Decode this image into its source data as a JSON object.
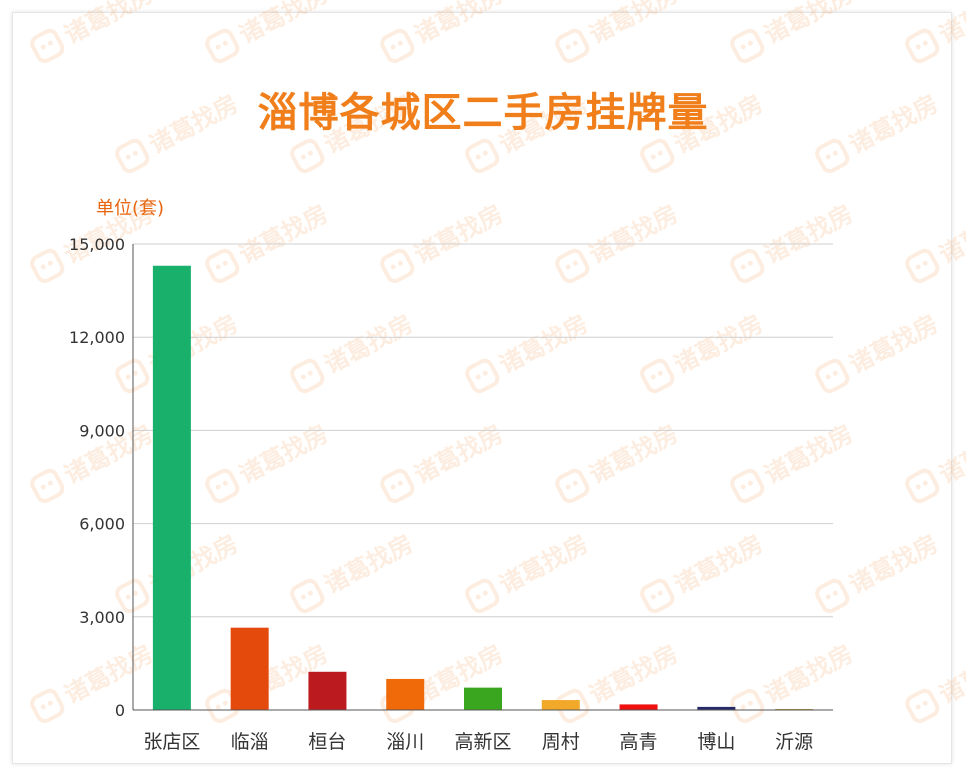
{
  "chart_data": {
    "type": "bar",
    "title": "淄博各城区二手房挂牌量",
    "unit_label": "单位(套)",
    "categories": [
      "张店区",
      "临淄",
      "桓台",
      "淄川",
      "高新区",
      "周村",
      "高青",
      "博山",
      "沂源"
    ],
    "values": [
      14300,
      2650,
      1230,
      1000,
      720,
      320,
      180,
      100,
      30
    ],
    "colors": [
      "#18b06a",
      "#e34a0c",
      "#bb1a1e",
      "#f06a0a",
      "#3aa61f",
      "#f2a92a",
      "#f01010",
      "#262a6a",
      "#b8902a"
    ],
    "ylim": [
      0,
      15000
    ],
    "yticks": [
      0,
      3000,
      6000,
      9000,
      12000,
      15000
    ],
    "ytick_labels": [
      "0",
      "3,000",
      "6,000",
      "9,000",
      "12,000",
      "15,000"
    ],
    "grid": true,
    "legend": "none"
  },
  "watermark_text": "诸葛找房"
}
